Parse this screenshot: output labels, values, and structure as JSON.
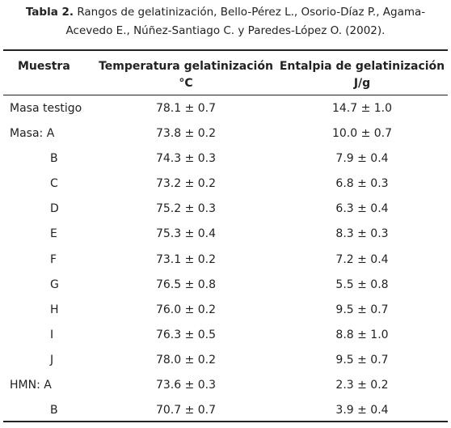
{
  "caption": {
    "label": "Tabla 2.",
    "text": "Rangos de gelatinización, Bello-Pérez L., Osorio-Díaz P., Agama-Acevedo E., Núñez-Santiago C. y Paredes-López O. (2002)."
  },
  "table": {
    "header": [
      "Muestra",
      "Temperatura gelatinización",
      "Entalpia de gelatinización"
    ],
    "units": [
      "°C",
      "J/g"
    ],
    "rows": [
      [
        "Masa testigo",
        "78.1 ± 0.7",
        "14.7 ± 1.0"
      ],
      [
        "Masa: A",
        "73.8 ± 0.2",
        "10.0 ± 0.7"
      ],
      [
        "B",
        "74.3 ± 0.3",
        "7.9 ± 0.4"
      ],
      [
        "C",
        "73.2 ± 0.2",
        "6.8 ± 0.3"
      ],
      [
        "D",
        "75.2 ± 0.3",
        "6.3 ± 0.4"
      ],
      [
        "E",
        "75.3 ± 0.4",
        "8.3 ± 0.3"
      ],
      [
        "F",
        "73.1 ± 0.2",
        "7.2 ± 0.4"
      ],
      [
        "G",
        "76.5 ± 0.8",
        "5.5 ± 0.8"
      ],
      [
        "H",
        "76.0 ± 0.2",
        "9.5 ± 0.7"
      ],
      [
        "I",
        "76.3 ± 0.5",
        "8.8 ± 1.0"
      ],
      [
        "J",
        "78.0 ± 0.2",
        "9.5 ± 0.7"
      ],
      [
        "HMN: A",
        "73.6 ± 0.3",
        "2.3 ± 0.2"
      ],
      [
        "B",
        "70.7 ± 0.7",
        "3.9 ± 0.4"
      ]
    ]
  }
}
